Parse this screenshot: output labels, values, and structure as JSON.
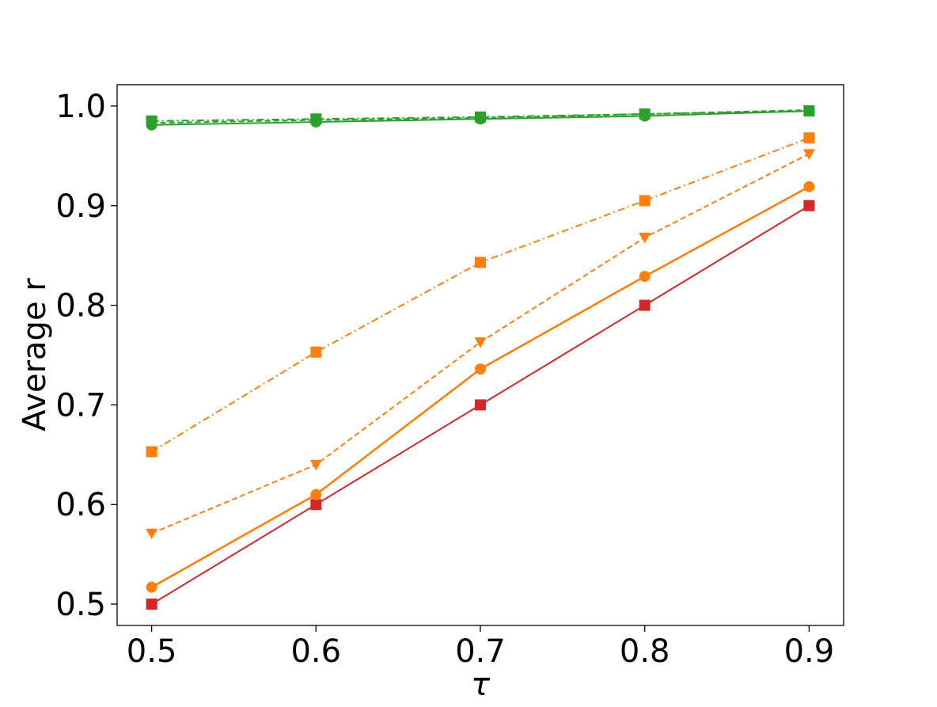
{
  "chart_data": {
    "type": "line",
    "title": "",
    "xlabel": "τ",
    "ylabel": "Average r",
    "x": [
      0.5,
      0.6,
      0.7,
      0.8,
      0.9
    ],
    "xlim": [
      0.479,
      0.921
    ],
    "ylim": [
      0.4786,
      1.0214
    ],
    "x_tick_labels": [
      "0.5",
      "0.6",
      "0.7",
      "0.8",
      "0.9"
    ],
    "y_ticks": [
      0.5,
      0.6,
      0.7,
      0.8,
      0.9,
      1.0
    ],
    "y_tick_labels": [
      "0.5",
      "0.6",
      "0.7",
      "0.8",
      "0.9",
      "1.0"
    ],
    "grid": false,
    "legend": "none",
    "series": [
      {
        "values": [
          0.5,
          0.6,
          0.7,
          0.8,
          0.9
        ],
        "color": "#d62728",
        "linestyle": "solid",
        "marker": "square"
      },
      {
        "values": [
          0.517,
          0.61,
          0.736,
          0.829,
          0.919
        ],
        "color": "#ff7f0e",
        "linestyle": "solid",
        "marker": "circle"
      },
      {
        "values": [
          0.571,
          0.64,
          0.763,
          0.868,
          0.952
        ],
        "color": "#ff7f0e",
        "linestyle": "dashed",
        "marker": "triangle-down"
      },
      {
        "values": [
          0.653,
          0.753,
          0.843,
          0.905,
          0.968
        ],
        "color": "#ff7f0e",
        "linestyle": "dashdot",
        "marker": "square"
      },
      {
        "values": [
          0.981,
          0.984,
          0.987,
          0.99,
          0.995
        ],
        "color": "#2ca02c",
        "linestyle": "solid",
        "marker": "circle"
      },
      {
        "values": [
          0.983,
          0.986,
          0.988,
          0.992,
          0.996
        ],
        "color": "#2ca02c",
        "linestyle": "dashed",
        "marker": "triangle-down"
      },
      {
        "values": [
          0.985,
          0.987,
          0.989,
          0.992,
          0.995
        ],
        "color": "#2ca02c",
        "linestyle": "dashdot",
        "marker": "square"
      }
    ]
  }
}
